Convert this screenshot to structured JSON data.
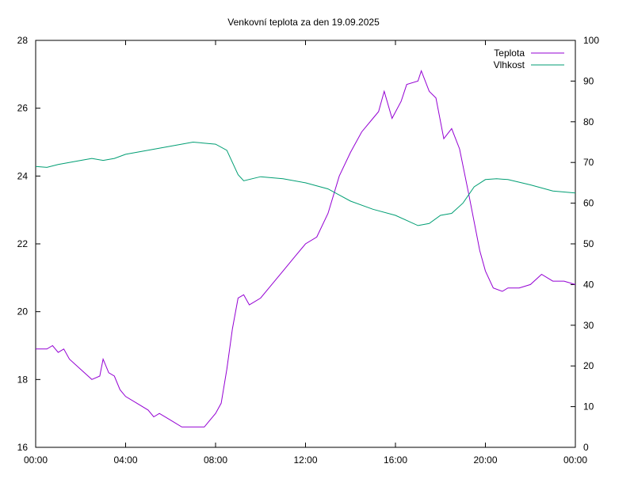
{
  "chart_data": {
    "type": "line",
    "title": "Venkovní teplota za den 19.09.2025",
    "xlabel": "",
    "ylabel": "",
    "y2label": "",
    "xlim": [
      0,
      24
    ],
    "ylim": [
      16,
      28
    ],
    "y2lim": [
      0,
      100
    ],
    "x_ticks": [
      0,
      4,
      8,
      12,
      16,
      20,
      24
    ],
    "x_tick_labels": [
      "00:00",
      "04:00",
      "08:00",
      "12:00",
      "16:00",
      "20:00",
      "00:00"
    ],
    "y_ticks": [
      "16",
      "18",
      "20",
      "22",
      "24",
      "26",
      "28"
    ],
    "y2_ticks": [
      "0",
      "10",
      "20",
      "30",
      "40",
      "50",
      "60",
      "70",
      "80",
      "90",
      "100"
    ],
    "grid": false,
    "legend_position": "top-right",
    "series": [
      {
        "name": "Teplota",
        "axis": "left",
        "color": "#9400d3",
        "x": [
          0,
          0.5,
          0.75,
          1,
          1.25,
          1.5,
          2,
          2.5,
          2.85,
          3,
          3.25,
          3.5,
          3.75,
          4,
          4.5,
          5,
          5.25,
          5.5,
          6,
          6.5,
          7,
          7.5,
          7.75,
          8,
          8.25,
          8.5,
          8.75,
          9,
          9.25,
          9.5,
          10,
          10.5,
          11,
          11.5,
          12,
          12.5,
          13,
          13.5,
          14,
          14.5,
          15,
          15.25,
          15.5,
          15.85,
          16.25,
          16.5,
          17,
          17.15,
          17.5,
          17.8,
          18.15,
          18.5,
          18.85,
          19.25,
          19.75,
          20,
          20.35,
          20.75,
          21,
          21.5,
          22,
          22.5,
          23,
          23.5,
          24
        ],
        "values": [
          18.9,
          18.9,
          19.0,
          18.8,
          18.9,
          18.6,
          18.3,
          18.0,
          18.1,
          18.6,
          18.2,
          18.1,
          17.7,
          17.5,
          17.3,
          17.1,
          16.9,
          17.0,
          16.8,
          16.6,
          16.6,
          16.6,
          16.8,
          17.0,
          17.3,
          18.3,
          19.5,
          20.4,
          20.5,
          20.2,
          20.4,
          20.8,
          21.2,
          21.6,
          22.0,
          22.2,
          22.9,
          24.0,
          24.7,
          25.3,
          25.7,
          25.9,
          26.5,
          25.7,
          26.2,
          26.7,
          26.8,
          27.1,
          26.5,
          26.3,
          25.1,
          25.4,
          24.8,
          23.5,
          21.8,
          21.2,
          20.7,
          20.6,
          20.7,
          20.7,
          20.8,
          21.1,
          20.9,
          20.9,
          20.8
        ]
      },
      {
        "name": "Vlhkost",
        "axis": "right",
        "color": "#009e73",
        "x": [
          0,
          0.5,
          1,
          2,
          2.5,
          3,
          3.5,
          4,
          5,
          6,
          7,
          8,
          8.5,
          9,
          9.25,
          10,
          11,
          12,
          13,
          13.5,
          14,
          15,
          16,
          17,
          17.5,
          18,
          18.5,
          19,
          19.5,
          20,
          20.5,
          21,
          22,
          23,
          24
        ],
        "values": [
          69,
          68.8,
          69.5,
          70.5,
          71,
          70.5,
          71,
          72,
          73,
          74,
          75,
          74.5,
          73,
          67,
          65.5,
          66.5,
          66,
          65,
          63.5,
          62,
          60.5,
          58.5,
          57,
          54.5,
          55,
          57,
          57.5,
          60,
          64,
          65.8,
          66,
          65.8,
          64.5,
          63,
          62.5
        ]
      }
    ]
  }
}
